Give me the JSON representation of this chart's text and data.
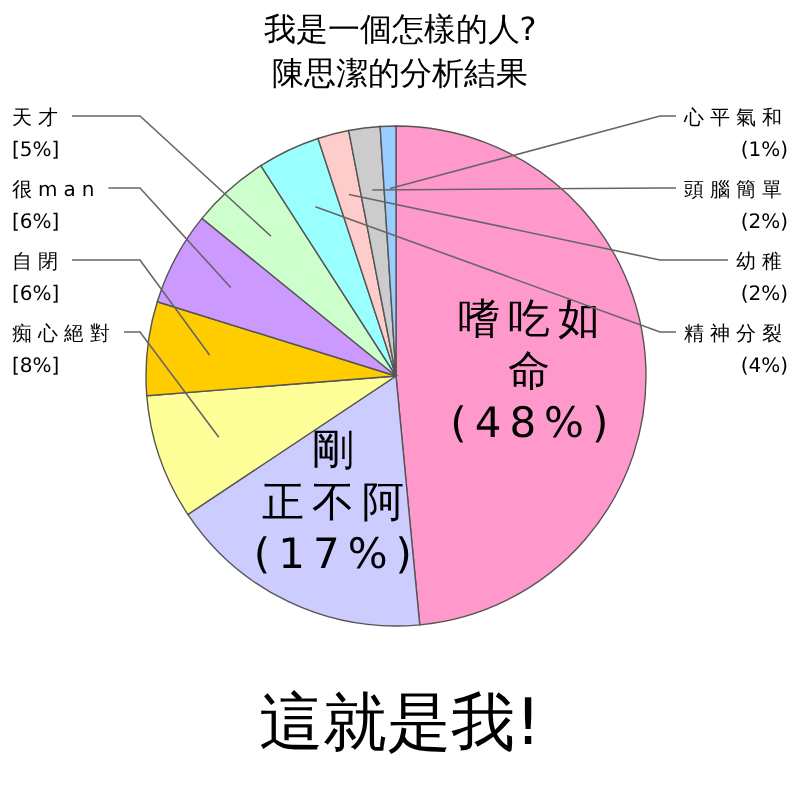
{
  "chart_data": {
    "type": "pie",
    "title": "我是一個怎樣的人?",
    "subtitle": "陳思潔的分析結果",
    "categories": [
      "嗜吃如命",
      "剛正不阿",
      "痴心絕對",
      "自閉",
      "很man",
      "天才",
      "精神分裂",
      "幼稚",
      "頭腦簡單",
      "心平氣和"
    ],
    "values": [
      48,
      17,
      8,
      6,
      6,
      5,
      4,
      2,
      2,
      1
    ],
    "colors": [
      "#ff99cc",
      "#ccccff",
      "#ffff99",
      "#ffcc00",
      "#cc99ff",
      "#ccffcc",
      "#99ffff",
      "#ffcccc",
      "#cccccc",
      "#99ccff"
    ],
    "value_labels": [
      "(48%)",
      "(17%)",
      "[8%]",
      "[6%]",
      "[6%]",
      "[5%]",
      "(4%)",
      "(2%)",
      "(2%)",
      "(1%)"
    ],
    "annotations": [
      "這就是我!"
    ]
  }
}
